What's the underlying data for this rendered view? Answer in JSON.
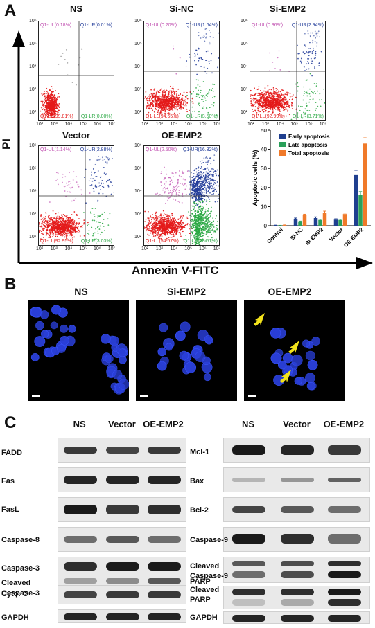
{
  "panel_letters": {
    "a": "A",
    "b": "B",
    "c": "C"
  },
  "flow_axes": {
    "y_label": "PI",
    "x_label": "Annexin V-FITC"
  },
  "flow_ticks": {
    "x": [
      "10²",
      "10³",
      "10⁴",
      "10⁵",
      "10⁶",
      "10⁷"
    ],
    "y": [
      "10⁶",
      "10⁵",
      "10⁴",
      "10³",
      "10²"
    ]
  },
  "flow_plots": [
    {
      "title": "NS",
      "ul": "Q1-UL(0.18%)",
      "ur": "Q1-UR(0.01%)",
      "ll": "Q1-LL(99.81%)",
      "lr": "Q1-LR(0.00%)"
    },
    {
      "title": "Si-NC",
      "ul": "Q1-UL(0.20%)",
      "ur": "Q1-UR(1.64%)",
      "ll": "Q1-LL(94.65%)",
      "lr": "Q1-LR(3.50%)"
    },
    {
      "title": "Si-EMP2",
      "ul": "Q1-UL(0.36%)",
      "ur": "Q1-UR(2.94%)",
      "ll": "Q1-LL(92.99%)",
      "lr": "Q1-LR(3.71%)"
    },
    {
      "title": "Vector",
      "ul": "Q1-UL(1.14%)",
      "ur": "Q1-UR(2.88%)",
      "ll": "Q1-LL(92.95%)",
      "lr": "Q1-LR(3.03%)"
    },
    {
      "title": "OE-EMP2",
      "ul": "Q1-UL(2.50%)",
      "ur": "Q1-UR(16.32%)",
      "ll": "Q1-LL(54.67%)",
      "lr": "Q1-LR(26.51%)"
    }
  ],
  "chart_data": {
    "type": "bar",
    "categories": [
      "Control",
      "Si-NC",
      "Si-EMP2",
      "Vector",
      "OE-EMP2"
    ],
    "series": [
      {
        "name": "Early apoptosis",
        "values": [
          0.2,
          3.5,
          4.0,
          3.2,
          26.5
        ],
        "errors": [
          0.1,
          0.5,
          0.6,
          0.4,
          2.5
        ],
        "color": "#1f3f8f"
      },
      {
        "name": "Late apoptosis",
        "values": [
          0.1,
          2.0,
          3.0,
          3.0,
          16.3
        ],
        "errors": [
          0.1,
          0.4,
          0.4,
          0.4,
          1.5
        ],
        "color": "#2aa05a"
      },
      {
        "name": "Total apoptosis",
        "values": [
          0.3,
          5.5,
          6.8,
          6.1,
          43.0
        ],
        "errors": [
          0.1,
          0.5,
          0.8,
          0.5,
          3.0
        ],
        "color": "#f07a2a"
      }
    ],
    "ylabel": "Apoptotic cells (%)",
    "yticks": [
      "0",
      "10",
      "20",
      "30",
      "40",
      "50"
    ],
    "ylim": [
      0,
      50
    ],
    "legend_position": "top-right"
  },
  "panel_b": {
    "titles": [
      "NS",
      "Si-EMP2",
      "OE-EMP2"
    ]
  },
  "blot_left": {
    "columns": [
      "NS",
      "Vector",
      "OE-EMP2"
    ],
    "rows": [
      "FADD",
      "Fas",
      "FasL",
      "Caspase-8",
      "Caspase-3",
      "Cleaved",
      "Caspase-3",
      "Cyto. C",
      "GAPDH"
    ]
  },
  "blot_right": {
    "columns": [
      "NS",
      "Vector",
      "OE-EMP2"
    ],
    "rows": [
      "Mcl-1",
      "Bax",
      "Bcl-2",
      "Caspase-9",
      "Cleaved",
      "Caspase-9",
      "PARP",
      "Cleaved",
      "PARP",
      "GAPDH"
    ]
  },
  "colors": {
    "live": "#e41a1a",
    "early": "#2aa843",
    "late": "#233d9a",
    "necrotic": "#c04fb0",
    "nucleus": "#2a3fd8",
    "arrow": "#f2e21b"
  }
}
